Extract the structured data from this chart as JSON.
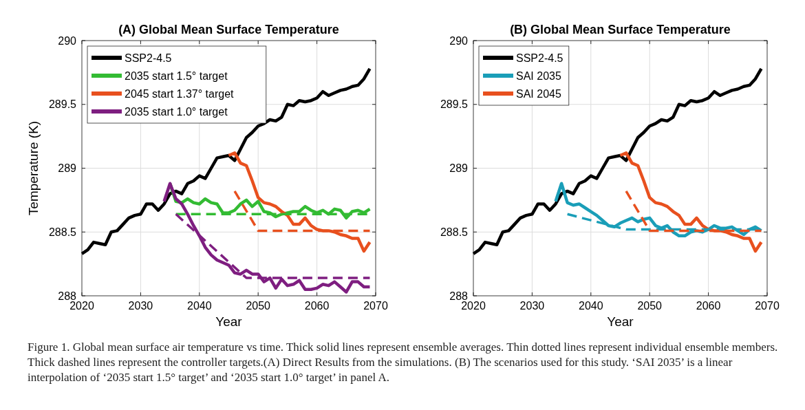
{
  "chart_data": [
    {
      "type": "line",
      "title": "(A) Global Mean Surface Temperature",
      "xlabel": "Year",
      "ylabel": "Temperature (K)",
      "xlim": [
        2020,
        2070
      ],
      "xticks": [
        2020,
        2030,
        2040,
        2050,
        2060,
        2070
      ],
      "ylim": [
        288,
        290
      ],
      "yticks": [
        288,
        288.5,
        289,
        289.5,
        290
      ],
      "grid": true,
      "legend": "top left",
      "annotations": [
        "Figure 1. Global mean surface air temperature vs time. Thick solid lines represent ensemble averages. Thin dotted lines represent individual ensemble members. Thick dashed lines represent the controller targets.(A) Direct Results from the simulations. (B) The scenarios used for this study. ‘SAI 2035’ is a linear interpolation of ‘2035 start 1.5° target’ and ‘2035 start 1.0° target’ in panel A."
      ],
      "series": [
        {
          "name": "SSP2-4.5",
          "color": "#000000",
          "line_style": "solid",
          "x": [
            2020,
            2021,
            2022,
            2023,
            2024,
            2025,
            2026,
            2027,
            2028,
            2029,
            2030,
            2031,
            2032,
            2033,
            2034,
            2035,
            2036,
            2037,
            2038,
            2039,
            2040,
            2041,
            2042,
            2043,
            2044,
            2045,
            2046,
            2047,
            2048,
            2049,
            2050,
            2051,
            2052,
            2053,
            2054,
            2055,
            2056,
            2057,
            2058,
            2059,
            2060,
            2061,
            2062,
            2063,
            2064,
            2065,
            2066,
            2067,
            2068,
            2069
          ],
          "values": [
            288.33,
            288.36,
            288.42,
            288.41,
            288.4,
            288.5,
            288.51,
            288.56,
            288.61,
            288.63,
            288.64,
            288.72,
            288.72,
            288.67,
            288.72,
            288.8,
            288.82,
            288.8,
            288.88,
            288.9,
            288.94,
            288.92,
            289.0,
            289.08,
            289.09,
            289.1,
            289.06,
            289.15,
            289.24,
            289.28,
            289.33,
            289.35,
            289.38,
            289.37,
            289.4,
            289.5,
            289.49,
            289.53,
            289.52,
            289.53,
            289.55,
            289.6,
            289.57,
            289.59,
            289.61,
            289.62,
            289.64,
            289.65,
            289.7,
            289.78
          ]
        },
        {
          "name": "2035 start 1.5° target",
          "color": "#33bb33",
          "line_style": "solid",
          "x": [
            2035,
            2036,
            2037,
            2038,
            2039,
            2040,
            2041,
            2042,
            2043,
            2044,
            2045,
            2046,
            2047,
            2048,
            2049,
            2050,
            2051,
            2052,
            2053,
            2054,
            2055,
            2056,
            2057,
            2058,
            2059,
            2060,
            2061,
            2062,
            2063,
            2064,
            2065,
            2066,
            2067,
            2068,
            2069
          ],
          "values": [
            288.88,
            288.74,
            288.73,
            288.76,
            288.73,
            288.72,
            288.76,
            288.73,
            288.72,
            288.65,
            288.65,
            288.67,
            288.72,
            288.75,
            288.7,
            288.74,
            288.66,
            288.65,
            288.62,
            288.64,
            288.65,
            288.66,
            288.66,
            288.7,
            288.67,
            288.65,
            288.67,
            288.64,
            288.68,
            288.67,
            288.61,
            288.66,
            288.67,
            288.65,
            288.68
          ]
        },
        {
          "name": "2045 start 1.37° target",
          "color": "#e8501e",
          "line_style": "solid",
          "x": [
            2045,
            2046,
            2047,
            2048,
            2049,
            2050,
            2051,
            2052,
            2053,
            2054,
            2055,
            2056,
            2057,
            2058,
            2059,
            2060,
            2061,
            2062,
            2063,
            2064,
            2065,
            2066,
            2067,
            2068,
            2069
          ],
          "values": [
            289.1,
            289.12,
            289.04,
            289.02,
            288.9,
            288.77,
            288.73,
            288.72,
            288.7,
            288.66,
            288.63,
            288.56,
            288.56,
            288.61,
            288.55,
            288.52,
            288.51,
            288.51,
            288.5,
            288.48,
            288.47,
            288.45,
            288.45,
            288.35,
            288.42
          ]
        },
        {
          "name": "2035 start 1.0° target",
          "color": "#7e1e80",
          "line_style": "solid",
          "x": [
            2034,
            2035,
            2036,
            2037,
            2038,
            2039,
            2040,
            2041,
            2042,
            2043,
            2044,
            2045,
            2046,
            2047,
            2048,
            2049,
            2050,
            2051,
            2052,
            2053,
            2054,
            2055,
            2056,
            2057,
            2058,
            2059,
            2060,
            2061,
            2062,
            2063,
            2064,
            2065,
            2066,
            2067,
            2068,
            2069
          ],
          "values": [
            288.74,
            288.88,
            288.76,
            288.72,
            288.64,
            288.55,
            288.47,
            288.38,
            288.32,
            288.28,
            288.26,
            288.24,
            288.18,
            288.17,
            288.2,
            288.17,
            288.17,
            288.11,
            288.14,
            288.06,
            288.13,
            288.08,
            288.09,
            288.12,
            288.05,
            288.05,
            288.06,
            288.09,
            288.08,
            288.11,
            288.07,
            288.03,
            288.11,
            288.11,
            288.07,
            288.07
          ]
        },
        {
          "color": "#33bb33",
          "line_style": "dashed",
          "x": [
            2036,
            2069
          ],
          "values": [
            288.64,
            288.64
          ]
        },
        {
          "color": "#e8501e",
          "line_style": "dashed",
          "x": [
            2046,
            2050,
            2069
          ],
          "values": [
            288.82,
            288.51,
            288.51
          ]
        },
        {
          "color": "#7e1e80",
          "line_style": "dashed",
          "x": [
            2036,
            2048,
            2069
          ],
          "values": [
            288.64,
            288.14,
            288.14
          ]
        }
      ]
    },
    {
      "type": "line",
      "title": "(B) Global Mean Surface Temperature",
      "xlabel": "Year",
      "xlim": [
        2020,
        2070
      ],
      "xticks": [
        2020,
        2030,
        2040,
        2050,
        2060,
        2070
      ],
      "ylim": [
        288,
        290
      ],
      "yticks": [
        288,
        288.5,
        289,
        289.5,
        290
      ],
      "grid": true,
      "legend": "top left",
      "series": [
        {
          "name": "SSP2-4.5",
          "color": "#000000",
          "line_style": "solid",
          "x": [
            2020,
            2021,
            2022,
            2023,
            2024,
            2025,
            2026,
            2027,
            2028,
            2029,
            2030,
            2031,
            2032,
            2033,
            2034,
            2035,
            2036,
            2037,
            2038,
            2039,
            2040,
            2041,
            2042,
            2043,
            2044,
            2045,
            2046,
            2047,
            2048,
            2049,
            2050,
            2051,
            2052,
            2053,
            2054,
            2055,
            2056,
            2057,
            2058,
            2059,
            2060,
            2061,
            2062,
            2063,
            2064,
            2065,
            2066,
            2067,
            2068,
            2069
          ],
          "values": [
            288.33,
            288.36,
            288.42,
            288.41,
            288.4,
            288.5,
            288.51,
            288.56,
            288.61,
            288.63,
            288.64,
            288.72,
            288.72,
            288.67,
            288.72,
            288.8,
            288.82,
            288.8,
            288.88,
            288.9,
            288.94,
            288.92,
            289.0,
            289.08,
            289.09,
            289.1,
            289.06,
            289.15,
            289.24,
            289.28,
            289.33,
            289.35,
            289.38,
            289.37,
            289.4,
            289.5,
            289.49,
            289.53,
            289.52,
            289.53,
            289.55,
            289.6,
            289.57,
            289.59,
            289.61,
            289.62,
            289.64,
            289.65,
            289.7,
            289.78
          ]
        },
        {
          "name": "SAI 2035",
          "color": "#1a9eb8",
          "line_style": "solid",
          "x": [
            2034,
            2035,
            2036,
            2037,
            2038,
            2039,
            2040,
            2041,
            2042,
            2043,
            2044,
            2045,
            2046,
            2047,
            2048,
            2049,
            2050,
            2051,
            2052,
            2053,
            2054,
            2055,
            2056,
            2057,
            2058,
            2059,
            2060,
            2061,
            2062,
            2063,
            2064,
            2065,
            2066,
            2067,
            2068,
            2069
          ],
          "values": [
            288.74,
            288.88,
            288.73,
            288.71,
            288.72,
            288.69,
            288.66,
            288.63,
            288.59,
            288.55,
            288.54,
            288.57,
            288.59,
            288.61,
            288.58,
            288.6,
            288.61,
            288.55,
            288.53,
            288.55,
            288.5,
            288.47,
            288.47,
            288.5,
            288.51,
            288.5,
            288.52,
            288.55,
            288.53,
            288.53,
            288.54,
            288.51,
            288.48,
            288.52,
            288.54,
            288.51
          ]
        },
        {
          "name": "SAI 2045",
          "color": "#e8501e",
          "line_style": "solid",
          "x": [
            2045,
            2046,
            2047,
            2048,
            2049,
            2050,
            2051,
            2052,
            2053,
            2054,
            2055,
            2056,
            2057,
            2058,
            2059,
            2060,
            2061,
            2062,
            2063,
            2064,
            2065,
            2066,
            2067,
            2068,
            2069
          ],
          "values": [
            289.1,
            289.12,
            289.04,
            289.02,
            288.9,
            288.77,
            288.73,
            288.72,
            288.7,
            288.66,
            288.63,
            288.56,
            288.56,
            288.61,
            288.55,
            288.52,
            288.51,
            288.51,
            288.5,
            288.48,
            288.47,
            288.45,
            288.45,
            288.35,
            288.42
          ]
        },
        {
          "color": "#1a9eb8",
          "line_style": "dashed",
          "x": [
            2036,
            2046,
            2069
          ],
          "values": [
            288.64,
            288.52,
            288.52
          ]
        },
        {
          "color": "#e8501e",
          "line_style": "dashed",
          "x": [
            2046,
            2050,
            2069
          ],
          "values": [
            288.82,
            288.51,
            288.51
          ]
        }
      ]
    }
  ]
}
